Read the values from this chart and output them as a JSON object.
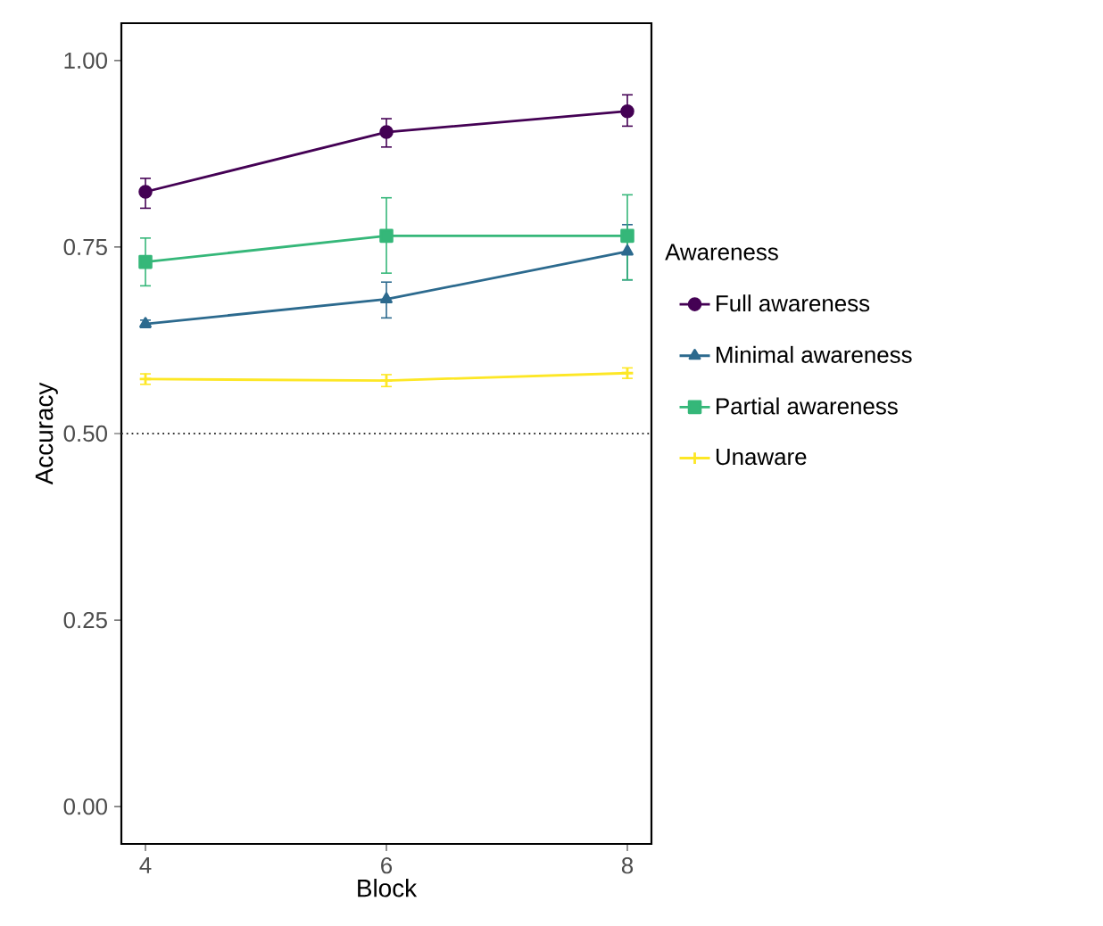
{
  "chart_data": {
    "type": "line",
    "xlabel": "Block",
    "ylabel": "Accuracy",
    "legend_title": "Awareness",
    "x": [
      4,
      6,
      8
    ],
    "xlim": [
      3.8,
      8.2
    ],
    "xticks": [
      4,
      6,
      8
    ],
    "ylim": [
      -0.05,
      1.05
    ],
    "yticks": [
      {
        "value": 0,
        "label": "0.00"
      },
      {
        "value": 0.25,
        "label": "0.25"
      },
      {
        "value": 0.5,
        "label": "0.50"
      },
      {
        "value": 0.75,
        "label": "0.75"
      },
      {
        "value": 1,
        "label": "1.00"
      }
    ],
    "grid": false,
    "legend": "right",
    "line_style": "solid",
    "ref_lines": [
      {
        "axis": "y",
        "value": 0.5,
        "color": "#333333",
        "line_style": "dotted"
      }
    ],
    "series": [
      {
        "name": "Full awareness",
        "color": "#440154",
        "marker": "circle",
        "values": [
          0.824,
          0.904,
          0.932
        ],
        "errors": [
          [
            0.802,
            0.842
          ],
          [
            0.884,
            0.922
          ],
          [
            0.912,
            0.954
          ]
        ]
      },
      {
        "name": "Minimal awareness",
        "color": "#2c6a8e",
        "marker": "triangle",
        "values": [
          0.647,
          0.68,
          0.744
        ],
        "errors": [
          [
            0.642,
            0.652
          ],
          [
            0.655,
            0.703
          ],
          [
            0.706,
            0.78
          ]
        ]
      },
      {
        "name": "Partial awareness",
        "color": "#35b779",
        "marker": "square",
        "values": [
          0.73,
          0.765,
          0.765
        ],
        "errors": [
          [
            0.698,
            0.762
          ],
          [
            0.715,
            0.816
          ],
          [
            0.706,
            0.82
          ]
        ]
      },
      {
        "name": "Unaware",
        "color": "#fde725",
        "marker": "cross",
        "values": [
          0.573,
          0.571,
          0.581
        ],
        "errors": [
          [
            0.566,
            0.58
          ],
          [
            0.563,
            0.579
          ],
          [
            0.574,
            0.588
          ]
        ]
      }
    ]
  }
}
